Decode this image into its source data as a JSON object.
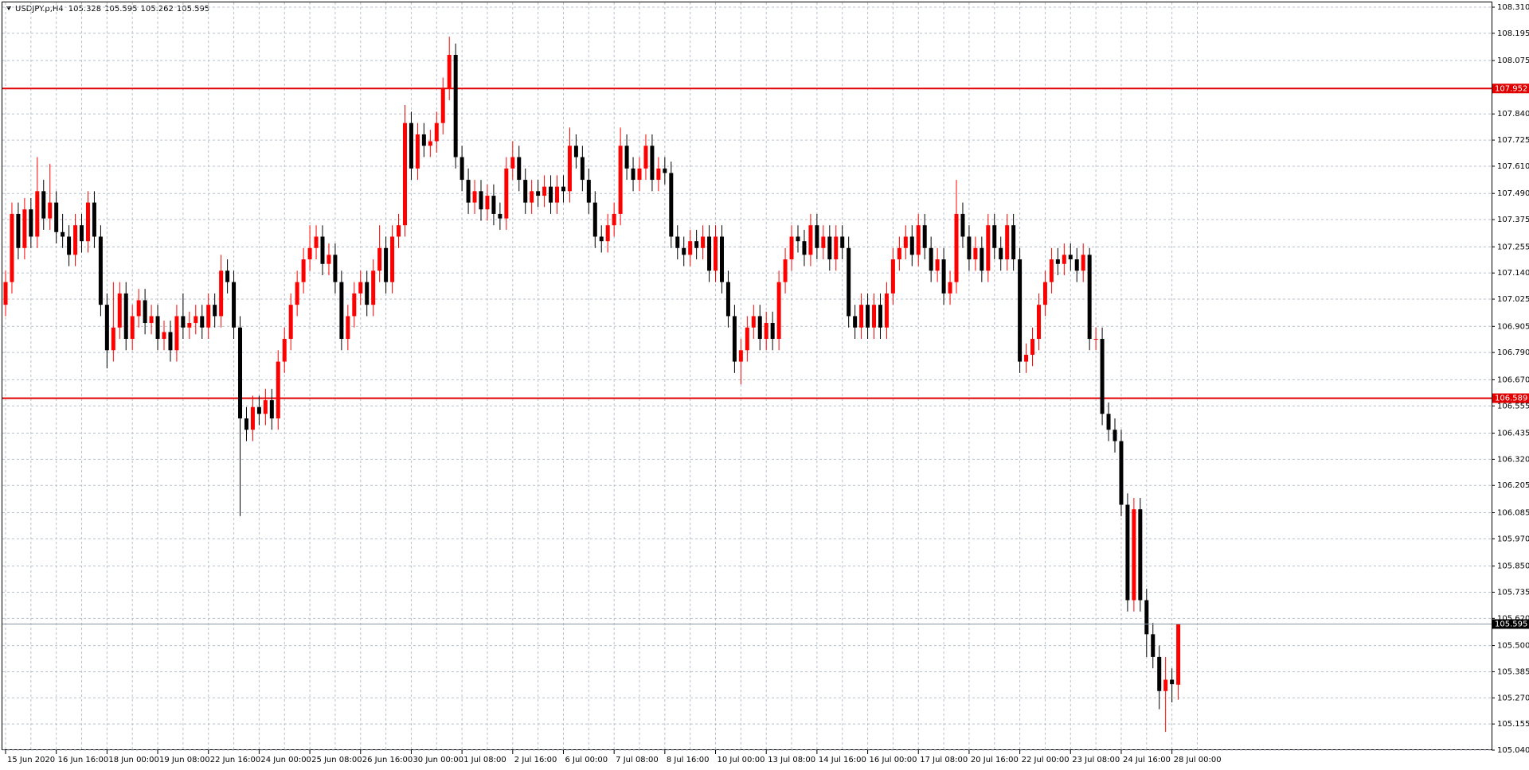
{
  "chart_data": {
    "type": "candlestick",
    "title": "USDJPY.p,H4",
    "up_color": "#ff0000",
    "down_color": "#000000",
    "grid": true,
    "ylim": [
      105.04,
      108.31
    ],
    "yticks": [
      {
        "value": 108.31,
        "label": "108.310"
      },
      108.195,
      108.075,
      {
        "value": 107.84,
        "label": "107.840"
      },
      107.725,
      {
        "value": 107.61,
        "label": "107.610"
      },
      {
        "value": 107.49,
        "label": "107.490"
      },
      107.375,
      107.255,
      {
        "value": 107.14,
        "label": "107.140"
      },
      107.025,
      106.905,
      {
        "value": 106.79,
        "label": "106.790"
      },
      {
        "value": 106.67,
        "label": "106.670"
      },
      106.555,
      106.435,
      {
        "value": 106.32,
        "label": "106.320"
      },
      106.205,
      106.085,
      {
        "value": 105.97,
        "label": "105.970"
      },
      {
        "value": 105.85,
        "label": "105.850"
      },
      105.735,
      {
        "value": 105.62,
        "label": "105.620"
      },
      {
        "value": 105.5,
        "label": "105.500"
      },
      105.385,
      {
        "value": 105.27,
        "label": "105.270"
      },
      105.155,
      {
        "value": 105.04,
        "label": "105.040"
      }
    ],
    "hlines": [
      {
        "value": 107.952,
        "color": "#e00000"
      },
      {
        "value": 106.589,
        "color": "#e00000"
      }
    ],
    "categories": [
      "15 Jun 2020",
      null,
      null,
      null,
      null,
      null,
      null,
      null,
      "16 Jun 16:00",
      null,
      null,
      null,
      null,
      null,
      null,
      null,
      "18 Jun 00:00",
      null,
      null,
      null,
      null,
      null,
      null,
      null,
      "19 Jun 08:00",
      null,
      null,
      null,
      null,
      null,
      null,
      null,
      "22 Jun 16:00",
      null,
      null,
      null,
      null,
      null,
      null,
      null,
      "24 Jun 00:00",
      null,
      null,
      null,
      null,
      null,
      null,
      null,
      "25 Jun 08:00",
      null,
      null,
      null,
      null,
      null,
      null,
      null,
      "26 Jun 16:00",
      null,
      null,
      null,
      null,
      null,
      null,
      null,
      "30 Jun 00:00",
      null,
      null,
      null,
      null,
      null,
      null,
      null,
      "1 Jul 08:00",
      null,
      null,
      null,
      null,
      null,
      null,
      null,
      "2 Jul 16:00",
      null,
      null,
      null,
      null,
      null,
      null,
      null,
      "6 Jul 00:00",
      null,
      null,
      null,
      null,
      null,
      null,
      null,
      "7 Jul 08:00",
      null,
      null,
      null,
      null,
      null,
      null,
      null,
      "8 Jul 16:00",
      null,
      null,
      null,
      null,
      null,
      null,
      null,
      "10 Jul 00:00",
      null,
      null,
      null,
      null,
      null,
      null,
      null,
      "13 Jul 08:00",
      null,
      null,
      null,
      null,
      null,
      null,
      null,
      "14 Jul 16:00",
      null,
      null,
      null,
      null,
      null,
      null,
      null,
      "16 Jul 00:00",
      null,
      null,
      null,
      null,
      null,
      null,
      null,
      "17 Jul 08:00",
      null,
      null,
      null,
      null,
      null,
      null,
      null,
      "20 Jul 16:00",
      null,
      null,
      null,
      null,
      null,
      null,
      null,
      "22 Jul 00:00",
      null,
      null,
      null,
      null,
      null,
      null,
      null,
      "23 Jul 08:00",
      null,
      null,
      null,
      null,
      null,
      null,
      null,
      "24 Jul 16:00",
      null,
      null,
      null,
      null,
      null,
      null,
      null,
      "28 Jul 00:00",
      null
    ],
    "ohlc": [
      [
        107.0,
        107.15,
        106.95,
        107.1
      ],
      [
        107.1,
        107.45,
        107.05,
        107.4
      ],
      [
        107.4,
        107.45,
        107.2,
        107.25
      ],
      [
        107.25,
        107.47,
        107.2,
        107.42
      ],
      [
        107.42,
        107.47,
        107.25,
        107.3
      ],
      [
        107.3,
        107.65,
        107.25,
        107.5
      ],
      [
        107.5,
        107.55,
        107.33,
        107.38
      ],
      [
        107.38,
        107.62,
        107.33,
        107.45
      ],
      [
        107.45,
        107.5,
        107.27,
        107.32
      ],
      [
        107.32,
        107.4,
        107.25,
        107.3
      ],
      [
        107.3,
        107.35,
        107.17,
        107.22
      ],
      [
        107.22,
        107.4,
        107.17,
        107.35
      ],
      [
        107.35,
        107.4,
        107.23,
        107.28
      ],
      [
        107.28,
        107.5,
        107.23,
        107.45
      ],
      [
        107.45,
        107.5,
        107.25,
        107.3
      ],
      [
        107.3,
        107.35,
        106.95,
        107.0
      ],
      [
        107.0,
        107.05,
        106.72,
        106.8
      ],
      [
        106.8,
        107.1,
        106.75,
        106.9
      ],
      [
        106.9,
        107.1,
        106.85,
        107.05
      ],
      [
        107.05,
        107.1,
        106.8,
        106.85
      ],
      [
        106.85,
        107.0,
        106.8,
        106.95
      ],
      [
        106.95,
        107.07,
        106.9,
        107.02
      ],
      [
        107.02,
        107.07,
        106.87,
        106.92
      ],
      [
        106.92,
        107.0,
        106.87,
        106.95
      ],
      [
        106.95,
        107.0,
        106.8,
        106.85
      ],
      [
        106.85,
        106.93,
        106.8,
        106.88
      ],
      [
        106.88,
        106.93,
        106.75,
        106.8
      ],
      [
        106.8,
        107.0,
        106.75,
        106.95
      ],
      [
        106.95,
        107.05,
        106.85,
        106.9
      ],
      [
        106.9,
        106.97,
        106.85,
        106.92
      ],
      [
        106.92,
        107.0,
        106.87,
        106.95
      ],
      [
        106.95,
        107.0,
        106.85,
        106.9
      ],
      [
        106.9,
        107.05,
        106.85,
        107.0
      ],
      [
        107.0,
        107.05,
        106.9,
        106.95
      ],
      [
        106.95,
        107.22,
        106.9,
        107.15
      ],
      [
        107.15,
        107.2,
        107.05,
        107.1
      ],
      [
        107.1,
        107.15,
        106.85,
        106.9
      ],
      [
        106.9,
        106.95,
        106.07,
        106.5
      ],
      [
        106.5,
        106.55,
        106.4,
        106.45
      ],
      [
        106.45,
        106.6,
        106.4,
        106.55
      ],
      [
        106.55,
        106.6,
        106.47,
        106.52
      ],
      [
        106.52,
        106.63,
        106.47,
        106.58
      ],
      [
        106.58,
        106.63,
        106.45,
        106.5
      ],
      [
        106.5,
        106.8,
        106.45,
        106.75
      ],
      [
        106.75,
        106.9,
        106.7,
        106.85
      ],
      [
        106.85,
        107.05,
        106.8,
        107.0
      ],
      [
        107.0,
        107.15,
        106.95,
        107.1
      ],
      [
        107.1,
        107.25,
        107.05,
        107.2
      ],
      [
        107.2,
        107.35,
        107.15,
        107.25
      ],
      [
        107.25,
        107.35,
        107.2,
        107.3
      ],
      [
        107.3,
        107.35,
        107.13,
        107.18
      ],
      [
        107.18,
        107.27,
        107.13,
        107.22
      ],
      [
        107.22,
        107.27,
        107.05,
        107.1
      ],
      [
        107.1,
        107.15,
        106.8,
        106.85
      ],
      [
        106.85,
        107.0,
        106.8,
        106.95
      ],
      [
        106.95,
        107.1,
        106.9,
        107.05
      ],
      [
        107.05,
        107.15,
        107.0,
        107.1
      ],
      [
        107.1,
        107.15,
        106.95,
        107.0
      ],
      [
        107.0,
        107.2,
        106.95,
        107.15
      ],
      [
        107.15,
        107.35,
        107.1,
        107.25
      ],
      [
        107.25,
        107.3,
        107.05,
        107.1
      ],
      [
        107.1,
        107.35,
        107.05,
        107.3
      ],
      [
        107.3,
        107.4,
        107.25,
        107.35
      ],
      [
        107.35,
        107.88,
        107.3,
        107.8
      ],
      [
        107.8,
        107.85,
        107.55,
        107.6
      ],
      [
        107.6,
        107.8,
        107.55,
        107.75
      ],
      [
        107.75,
        107.8,
        107.65,
        107.7
      ],
      [
        107.7,
        107.77,
        107.65,
        107.72
      ],
      [
        107.72,
        107.85,
        107.67,
        107.8
      ],
      [
        107.8,
        108.0,
        107.75,
        107.95
      ],
      [
        107.95,
        108.18,
        107.9,
        108.1
      ],
      [
        108.1,
        108.15,
        107.6,
        107.65
      ],
      [
        107.65,
        107.7,
        107.5,
        107.55
      ],
      [
        107.55,
        107.6,
        107.4,
        107.45
      ],
      [
        107.45,
        107.55,
        107.4,
        107.5
      ],
      [
        107.5,
        107.55,
        107.37,
        107.42
      ],
      [
        107.42,
        107.53,
        107.37,
        107.48
      ],
      [
        107.48,
        107.53,
        107.35,
        107.4
      ],
      [
        107.4,
        107.45,
        107.33,
        107.38
      ],
      [
        107.38,
        107.65,
        107.33,
        107.6
      ],
      [
        107.6,
        107.72,
        107.55,
        107.65
      ],
      [
        107.65,
        107.7,
        107.5,
        107.55
      ],
      [
        107.55,
        107.6,
        107.4,
        107.45
      ],
      [
        107.45,
        107.55,
        107.4,
        107.5
      ],
      [
        107.5,
        107.55,
        107.43,
        107.48
      ],
      [
        107.48,
        107.57,
        107.43,
        107.52
      ],
      [
        107.52,
        107.57,
        107.4,
        107.45
      ],
      [
        107.45,
        107.57,
        107.4,
        107.52
      ],
      [
        107.52,
        107.57,
        107.45,
        107.5
      ],
      [
        107.5,
        107.78,
        107.45,
        107.7
      ],
      [
        107.7,
        107.75,
        107.6,
        107.65
      ],
      [
        107.65,
        107.7,
        107.5,
        107.55
      ],
      [
        107.55,
        107.6,
        107.4,
        107.45
      ],
      [
        107.45,
        107.5,
        107.25,
        107.3
      ],
      [
        107.3,
        107.35,
        107.23,
        107.28
      ],
      [
        107.28,
        107.4,
        107.23,
        107.35
      ],
      [
        107.35,
        107.45,
        107.3,
        107.4
      ],
      [
        107.4,
        107.78,
        107.35,
        107.7
      ],
      [
        107.7,
        107.75,
        107.55,
        107.6
      ],
      [
        107.6,
        107.65,
        107.5,
        107.55
      ],
      [
        107.55,
        107.65,
        107.5,
        107.6
      ],
      [
        107.6,
        107.75,
        107.55,
        107.7
      ],
      [
        107.7,
        107.75,
        107.5,
        107.55
      ],
      [
        107.55,
        107.65,
        107.5,
        107.6
      ],
      [
        107.6,
        107.65,
        107.53,
        107.58
      ],
      [
        107.58,
        107.63,
        107.25,
        107.3
      ],
      [
        107.3,
        107.35,
        107.2,
        107.25
      ],
      [
        107.25,
        107.3,
        107.17,
        107.22
      ],
      [
        107.22,
        107.33,
        107.17,
        107.28
      ],
      [
        107.28,
        107.33,
        107.2,
        107.25
      ],
      [
        107.25,
        107.35,
        107.2,
        107.3
      ],
      [
        107.3,
        107.35,
        107.1,
        107.15
      ],
      [
        107.15,
        107.35,
        107.1,
        107.3
      ],
      [
        107.3,
        107.35,
        107.05,
        107.1
      ],
      [
        107.1,
        107.15,
        106.9,
        106.95
      ],
      [
        106.95,
        107.0,
        106.7,
        106.75
      ],
      [
        106.75,
        106.85,
        106.65,
        106.8
      ],
      [
        106.8,
        106.95,
        106.75,
        106.9
      ],
      [
        106.9,
        107.0,
        106.85,
        106.95
      ],
      [
        106.95,
        107.0,
        106.8,
        106.85
      ],
      [
        106.85,
        106.97,
        106.8,
        106.92
      ],
      [
        106.92,
        106.97,
        106.8,
        106.85
      ],
      [
        106.85,
        107.15,
        106.8,
        107.1
      ],
      [
        107.1,
        107.25,
        107.05,
        107.2
      ],
      [
        107.2,
        107.35,
        107.15,
        107.3
      ],
      [
        107.3,
        107.35,
        107.23,
        107.28
      ],
      [
        107.28,
        107.33,
        107.17,
        107.22
      ],
      [
        107.22,
        107.4,
        107.17,
        107.35
      ],
      [
        107.35,
        107.4,
        107.2,
        107.25
      ],
      [
        107.25,
        107.35,
        107.2,
        107.3
      ],
      [
        107.3,
        107.35,
        107.15,
        107.2
      ],
      [
        107.2,
        107.35,
        107.15,
        107.3
      ],
      [
        107.3,
        107.35,
        107.2,
        107.25
      ],
      [
        107.25,
        107.3,
        106.9,
        106.95
      ],
      [
        106.95,
        107.0,
        106.85,
        106.9
      ],
      [
        106.9,
        107.05,
        106.85,
        107.0
      ],
      [
        107.0,
        107.05,
        106.85,
        106.9
      ],
      [
        106.9,
        107.05,
        106.85,
        107.0
      ],
      [
        107.0,
        107.05,
        106.85,
        106.9
      ],
      [
        106.9,
        107.1,
        106.85,
        107.05
      ],
      [
        107.05,
        107.25,
        107.0,
        107.2
      ],
      [
        107.2,
        107.3,
        107.15,
        107.25
      ],
      [
        107.25,
        107.35,
        107.2,
        107.3
      ],
      [
        107.3,
        107.35,
        107.17,
        107.22
      ],
      [
        107.22,
        107.4,
        107.17,
        107.35
      ],
      [
        107.35,
        107.4,
        107.2,
        107.25
      ],
      [
        107.25,
        107.3,
        107.1,
        107.15
      ],
      [
        107.15,
        107.25,
        107.1,
        107.2
      ],
      [
        107.2,
        107.25,
        107.0,
        107.05
      ],
      [
        107.05,
        107.15,
        107.0,
        107.1
      ],
      [
        107.1,
        107.55,
        107.05,
        107.4
      ],
      [
        107.4,
        107.45,
        107.25,
        107.3
      ],
      [
        107.3,
        107.35,
        107.15,
        107.2
      ],
      [
        107.2,
        107.3,
        107.15,
        107.25
      ],
      [
        107.25,
        107.3,
        107.1,
        107.15
      ],
      [
        107.15,
        107.4,
        107.1,
        107.35
      ],
      [
        107.35,
        107.4,
        107.2,
        107.25
      ],
      [
        107.25,
        107.3,
        107.15,
        107.2
      ],
      [
        107.2,
        107.4,
        107.15,
        107.35
      ],
      [
        107.35,
        107.4,
        107.15,
        107.2
      ],
      [
        107.2,
        107.25,
        106.7,
        106.75
      ],
      [
        106.75,
        106.83,
        106.7,
        106.78
      ],
      [
        106.78,
        106.9,
        106.73,
        106.85
      ],
      [
        106.85,
        107.05,
        106.8,
        107.0
      ],
      [
        107.0,
        107.15,
        106.95,
        107.1
      ],
      [
        107.1,
        107.25,
        107.05,
        107.2
      ],
      [
        107.2,
        107.25,
        107.13,
        107.18
      ],
      [
        107.18,
        107.27,
        107.13,
        107.22
      ],
      [
        107.22,
        107.27,
        107.15,
        107.2
      ],
      [
        107.2,
        107.25,
        107.1,
        107.15
      ],
      [
        107.15,
        107.27,
        107.1,
        107.22
      ],
      [
        107.22,
        107.25,
        106.8,
        106.85
      ],
      [
        106.85,
        106.9,
        106.8,
        106.85
      ],
      [
        106.85,
        106.9,
        106.47,
        106.52
      ],
      [
        106.52,
        106.57,
        106.4,
        106.45
      ],
      [
        106.45,
        106.5,
        106.35,
        106.4
      ],
      [
        106.4,
        106.45,
        106.07,
        106.12
      ],
      [
        106.12,
        106.17,
        105.65,
        105.7
      ],
      [
        105.7,
        106.15,
        105.65,
        106.1
      ],
      [
        106.1,
        106.15,
        105.65,
        105.7
      ],
      [
        105.7,
        105.75,
        105.45,
        105.55
      ],
      [
        105.55,
        105.6,
        105.4,
        105.45
      ],
      [
        105.45,
        105.5,
        105.22,
        105.3
      ],
      [
        105.3,
        105.45,
        105.12,
        105.35
      ],
      [
        105.35,
        105.4,
        105.25,
        105.33
      ],
      [
        105.328,
        105.595,
        105.262,
        105.595
      ]
    ]
  }
}
